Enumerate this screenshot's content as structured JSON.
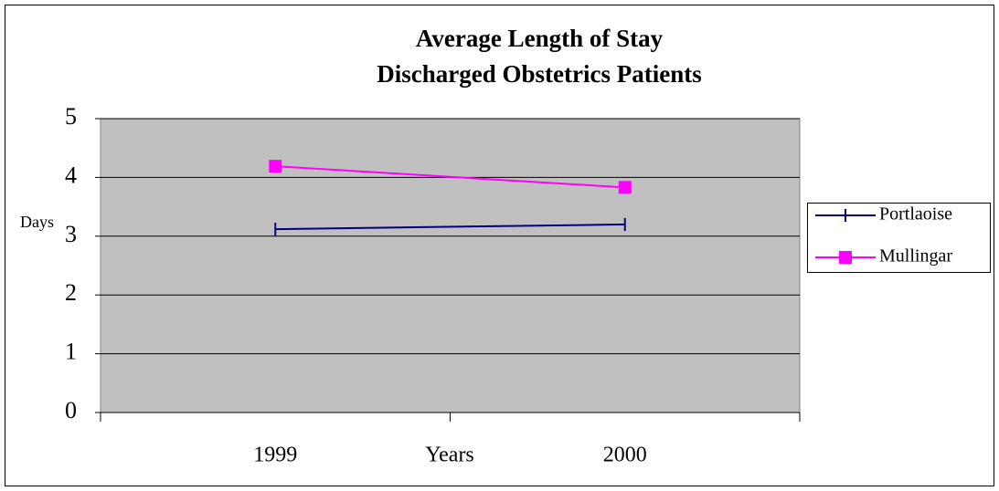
{
  "chart_data": {
    "type": "line",
    "title": "Average Length of Stay",
    "subtitle": "Discharged Obstetrics Patients",
    "x_label": "Years",
    "y_label": "Days",
    "categories": [
      "1999",
      "2000"
    ],
    "series": [
      {
        "name": "Portlaoise",
        "color": "#000080",
        "marker": "bar",
        "values": [
          3.12,
          3.2
        ]
      },
      {
        "name": "Mullingar",
        "color": "#ff00ff",
        "marker": "square",
        "values": [
          4.19,
          3.83
        ]
      }
    ],
    "ylim": [
      0,
      5
    ],
    "yticks": [
      0,
      1,
      2,
      3,
      4,
      5
    ],
    "grid": true,
    "legend": "right"
  }
}
